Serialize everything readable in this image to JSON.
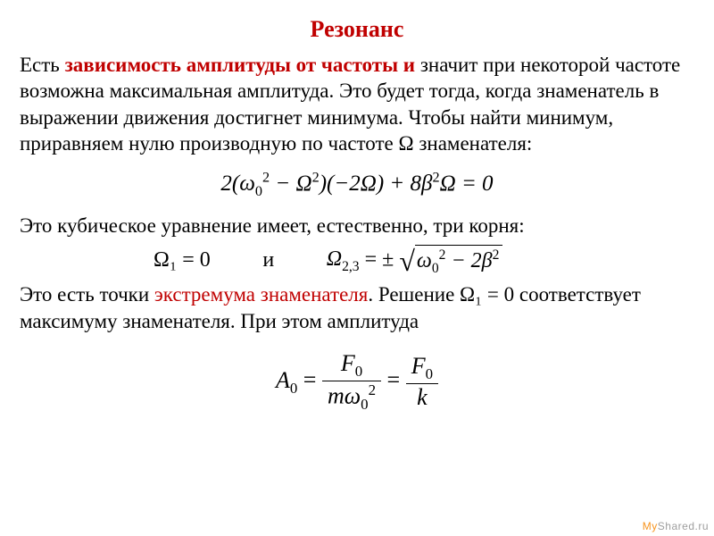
{
  "colors": {
    "title": "#c00000",
    "highlight_red": "#c00000",
    "text": "#000000",
    "background": "#ffffff",
    "watermark_my": "#f7941e",
    "watermark_shared": "#9e9e9e"
  },
  "typography": {
    "family": "Times New Roman",
    "title_fontsize": 26,
    "body_fontsize": 23,
    "math_fontsize": 24,
    "watermark_fontsize": 12
  },
  "title": "Резонанс",
  "para1": {
    "pre": "Есть ",
    "hl": "зависимость амплитуды от частоты и",
    "post": " значит при некоторой частоте возможна максимальная амплитуда. Это будет тогда, когда знаменатель в выражении движения достигнет минимума. Чтобы найти минимум, приравняем нулю производную по частоте Ω знаменателя:"
  },
  "equation1": {
    "type": "equation",
    "latex": "2(\\omega_0^2 - \\Omega^2)(-2\\Omega) + 8\\beta^2\\Omega = 0",
    "display": "2(ω₀² − Ω²)(−2Ω) + 8β²Ω = 0"
  },
  "para2": "Это кубическое уравнение имеет, естественно, три корня:",
  "roots": {
    "left_text": "Ω₁ = 0",
    "connector": "и",
    "right": {
      "latex": "\\Omega_{2,3} = \\pm\\sqrt{\\omega_0^2 - 2\\beta^2}",
      "prefix": "Ω",
      "sub": "2,3",
      "eq": " = ±",
      "under_sqrt": "ω₀² − 2β²"
    }
  },
  "para3": {
    "pre": "Это есть точки ",
    "hl": "экстремума знаменателя",
    "post1": ". Решение Ω₁ = 0 соответствует максимуму знаменателя. При этом амплитуда"
  },
  "equation_A0": {
    "type": "fraction-equation",
    "latex": "A_0 = \\dfrac{F_0}{m\\omega_0^2} = \\dfrac{F_0}{k}",
    "lhs": "A₀",
    "frac1_num": "F₀",
    "frac1_den": "mω₀²",
    "frac2_num": "F₀",
    "frac2_den": "k"
  },
  "watermark": {
    "part1": "Мy",
    "part2": "Shared.ru"
  }
}
